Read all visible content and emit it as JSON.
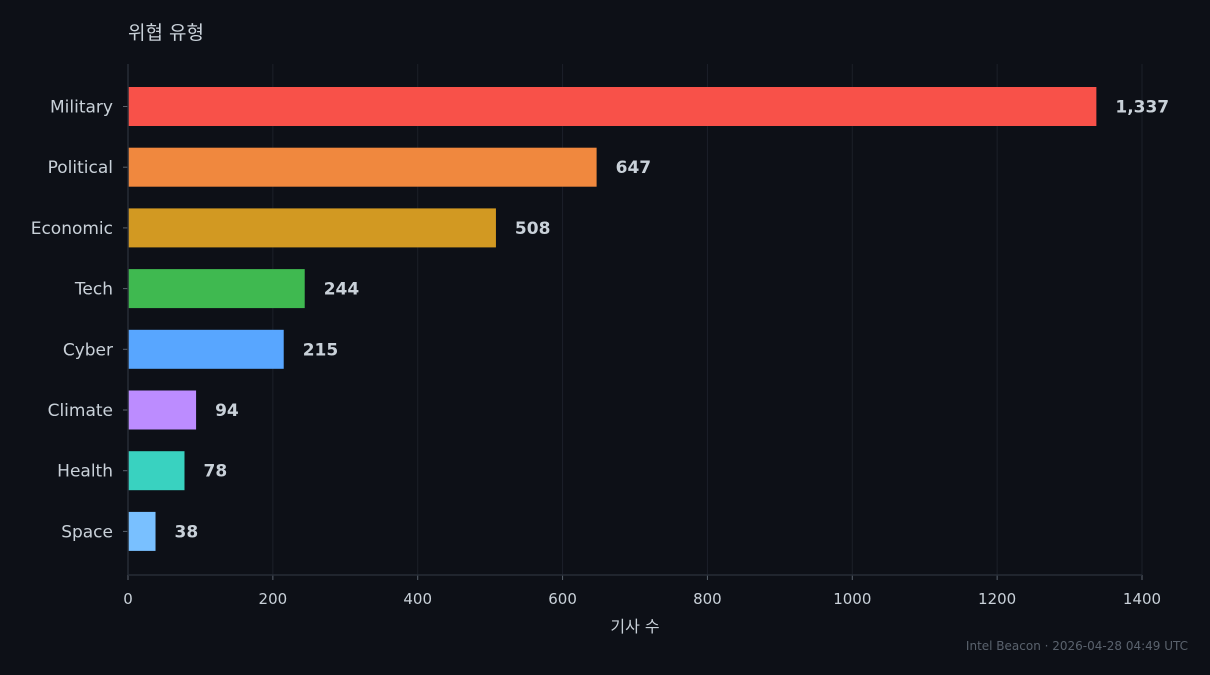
{
  "chart_data": {
    "type": "bar",
    "orientation": "horizontal",
    "title": "위협 유형",
    "xlabel": "기사 수",
    "ylabel": "",
    "xlim": [
      0,
      1400
    ],
    "xticks": [
      0,
      200,
      400,
      600,
      800,
      1000,
      1200,
      1400
    ],
    "grid": true,
    "categories": [
      "Military",
      "Political",
      "Economic",
      "Tech",
      "Cyber",
      "Climate",
      "Health",
      "Space"
    ],
    "values": [
      1337,
      647,
      508,
      244,
      215,
      94,
      78,
      38
    ],
    "value_labels": [
      "1,337",
      "647",
      "508",
      "244",
      "215",
      "94",
      "78",
      "38"
    ],
    "colors": [
      "#f85149",
      "#f0883e",
      "#d29922",
      "#3fb950",
      "#58a6ff",
      "#bc8cff",
      "#39d2c0",
      "#79c0ff"
    ]
  },
  "footer": "Intel Beacon · 2026-04-28 04:49 UTC"
}
